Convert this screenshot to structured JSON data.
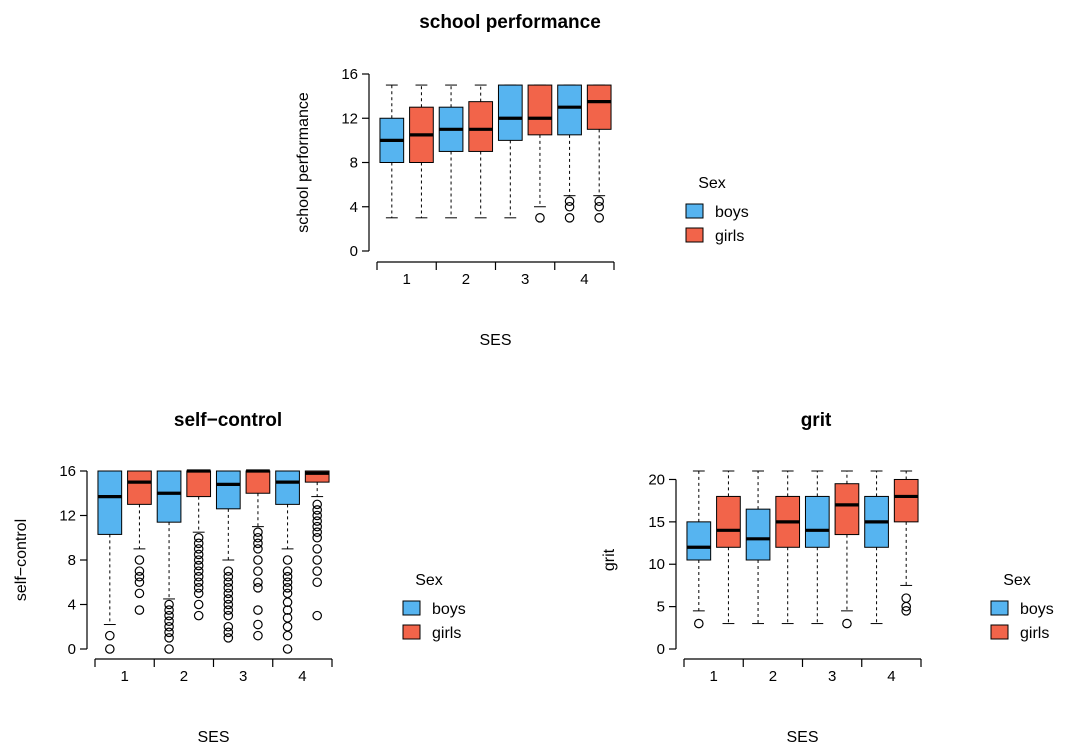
{
  "colors": {
    "boys": "#56B4F0",
    "girls": "#F2644A"
  },
  "chart_data": [
    {
      "type": "boxplot",
      "title": "school performance",
      "xlabel": "SES",
      "ylabel": "school performance",
      "ylim": [
        0,
        16
      ],
      "yticks": [
        "0",
        "4",
        "8",
        "12",
        "16"
      ],
      "categories": [
        "1",
        "2",
        "3",
        "4"
      ],
      "legend": {
        "title": "Sex",
        "placement": "right",
        "entries": [
          "boys",
          "girls"
        ]
      },
      "series": [
        {
          "name": "boys",
          "boxes": [
            {
              "category": "1",
              "min": 3,
              "q1": 8,
              "median": 10,
              "q3": 12,
              "max": 15,
              "outliers": []
            },
            {
              "category": "2",
              "min": 3,
              "q1": 9,
              "median": 11,
              "q3": 13,
              "max": 15,
              "outliers": []
            },
            {
              "category": "3",
              "min": 3,
              "q1": 10,
              "median": 12,
              "q3": 15,
              "max": 15,
              "outliers": []
            },
            {
              "category": "4",
              "min": 5,
              "q1": 10.5,
              "median": 13,
              "q3": 15,
              "max": 15,
              "outliers": [
                3,
                4,
                4.5
              ]
            }
          ]
        },
        {
          "name": "girls",
          "boxes": [
            {
              "category": "1",
              "min": 3,
              "q1": 8,
              "median": 10.5,
              "q3": 13,
              "max": 15,
              "outliers": []
            },
            {
              "category": "2",
              "min": 3,
              "q1": 9,
              "median": 11,
              "q3": 13.5,
              "max": 15,
              "outliers": []
            },
            {
              "category": "3",
              "min": 4,
              "q1": 10.5,
              "median": 12,
              "q3": 15,
              "max": 15,
              "outliers": [
                3
              ]
            },
            {
              "category": "4",
              "min": 5,
              "q1": 11,
              "median": 13.5,
              "q3": 15,
              "max": 15,
              "outliers": [
                3,
                4,
                4.5
              ]
            }
          ]
        }
      ]
    },
    {
      "type": "boxplot",
      "title": "self−control",
      "xlabel": "SES",
      "ylabel": "self−control",
      "ylim": [
        0,
        16
      ],
      "yticks": [
        "0",
        "4",
        "8",
        "12",
        "16"
      ],
      "categories": [
        "1",
        "2",
        "3",
        "4"
      ],
      "legend": {
        "title": "Sex",
        "placement": "right",
        "entries": [
          "boys",
          "girls"
        ]
      },
      "series": [
        {
          "name": "boys",
          "boxes": [
            {
              "category": "1",
              "min": 2.2,
              "q1": 10.3,
              "median": 13.7,
              "q3": 16,
              "max": 16,
              "outliers": [
                0,
                1.2
              ]
            },
            {
              "category": "2",
              "min": 4.5,
              "q1": 11.4,
              "median": 14,
              "q3": 16,
              "max": 16,
              "outliers": [
                0,
                1,
                1.5,
                2,
                2.5,
                3,
                3.5,
                4
              ]
            },
            {
              "category": "3",
              "min": 8,
              "q1": 12.6,
              "median": 14.8,
              "q3": 16,
              "max": 16,
              "outliers": [
                1,
                1.5,
                2,
                3,
                3.5,
                4,
                4.5,
                5,
                5.5,
                6,
                6.5,
                7
              ]
            },
            {
              "category": "4",
              "min": 9,
              "q1": 13,
              "median": 15,
              "q3": 16,
              "max": 16,
              "outliers": [
                0,
                1.2,
                2,
                2.8,
                3.5,
                4.2,
                5,
                5.5,
                6,
                6.5,
                7,
                8
              ]
            }
          ]
        },
        {
          "name": "girls",
          "boxes": [
            {
              "category": "1",
              "min": 9,
              "q1": 13,
              "median": 15,
              "q3": 16,
              "max": 16,
              "outliers": [
                3.5,
                5,
                6,
                6.5,
                7,
                8
              ]
            },
            {
              "category": "2",
              "min": 10.5,
              "q1": 13.7,
              "median": 16,
              "q3": 16,
              "max": 16,
              "outliers": [
                3,
                4,
                5,
                5.5,
                6,
                6.5,
                7,
                7.5,
                8,
                8.5,
                9,
                9.5,
                10
              ]
            },
            {
              "category": "3",
              "min": 11,
              "q1": 14,
              "median": 16,
              "q3": 16,
              "max": 16,
              "outliers": [
                1.2,
                2.2,
                3.5,
                5.5,
                6,
                7,
                8,
                9,
                9.5,
                10,
                10.5
              ]
            },
            {
              "category": "4",
              "min": 13.7,
              "q1": 15,
              "median": 15.8,
              "q3": 16,
              "max": 16,
              "outliers": [
                3,
                6,
                7,
                8,
                9,
                10,
                10.5,
                11,
                11.5,
                12,
                12.5,
                13
              ]
            }
          ]
        }
      ]
    },
    {
      "type": "boxplot",
      "title": "grit",
      "xlabel": "SES",
      "ylabel": "grit",
      "ylim": [
        0,
        21
      ],
      "yticks": [
        "0",
        "5",
        "10",
        "15",
        "20"
      ],
      "categories": [
        "1",
        "2",
        "3",
        "4"
      ],
      "legend": {
        "title": "Sex",
        "placement": "right",
        "entries": [
          "boys",
          "girls"
        ]
      },
      "series": [
        {
          "name": "boys",
          "boxes": [
            {
              "category": "1",
              "min": 4.5,
              "q1": 10.5,
              "median": 12,
              "q3": 15,
              "max": 21,
              "outliers": [
                3
              ]
            },
            {
              "category": "2",
              "min": 3,
              "q1": 10.5,
              "median": 13,
              "q3": 16.5,
              "max": 21,
              "outliers": []
            },
            {
              "category": "3",
              "min": 3,
              "q1": 12,
              "median": 14,
              "q3": 18,
              "max": 21,
              "outliers": []
            },
            {
              "category": "4",
              "min": 3,
              "q1": 12,
              "median": 15,
              "q3": 18,
              "max": 21,
              "outliers": []
            }
          ]
        },
        {
          "name": "girls",
          "boxes": [
            {
              "category": "1",
              "min": 3,
              "q1": 12,
              "median": 14,
              "q3": 18,
              "max": 21,
              "outliers": []
            },
            {
              "category": "2",
              "min": 3,
              "q1": 12,
              "median": 15,
              "q3": 18,
              "max": 21,
              "outliers": []
            },
            {
              "category": "3",
              "min": 4.5,
              "q1": 13.5,
              "median": 17,
              "q3": 19.5,
              "max": 21,
              "outliers": [
                3
              ]
            },
            {
              "category": "4",
              "min": 7.5,
              "q1": 15,
              "median": 18,
              "q3": 20,
              "max": 21,
              "outliers": [
                4.5,
                5,
                6
              ]
            }
          ]
        }
      ]
    }
  ]
}
